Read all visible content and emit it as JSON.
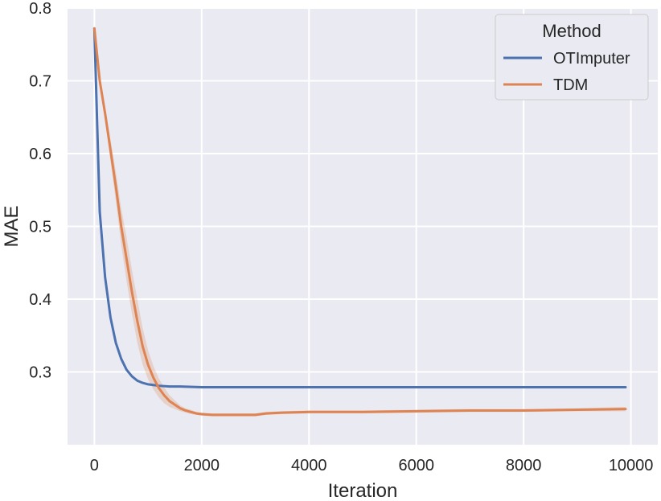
{
  "chart_data": {
    "type": "line",
    "title": "",
    "xlabel": "Iteration",
    "ylabel": "MAE",
    "xlim": [
      -500,
      10500
    ],
    "ylim": [
      0.2,
      0.8
    ],
    "x_ticks": [
      0,
      2000,
      4000,
      6000,
      8000,
      10000
    ],
    "x_tick_labels": [
      "0",
      "2000",
      "4000",
      "6000",
      "8000",
      "10000"
    ],
    "y_ticks": [
      0.3,
      0.4,
      0.5,
      0.6,
      0.7,
      0.8
    ],
    "y_tick_labels": [
      "0.3",
      "0.4",
      "0.5",
      "0.6",
      "0.7",
      "0.8"
    ],
    "grid": true,
    "background": "#eaeaf2",
    "legend": {
      "title": "Method",
      "position": "top-right"
    },
    "series": [
      {
        "name": "OTImputer",
        "color": "#4c72b0",
        "x": [
          0,
          100,
          200,
          300,
          400,
          500,
          600,
          700,
          800,
          900,
          1000,
          1200,
          1400,
          1600,
          2000,
          3000,
          4000,
          5000,
          6000,
          7000,
          8000,
          9000,
          9900
        ],
        "y": [
          0.772,
          0.52,
          0.43,
          0.375,
          0.34,
          0.318,
          0.303,
          0.294,
          0.288,
          0.285,
          0.283,
          0.281,
          0.28,
          0.28,
          0.279,
          0.279,
          0.279,
          0.279,
          0.279,
          0.279,
          0.279,
          0.279,
          0.279
        ]
      },
      {
        "name": "TDM",
        "color": "#dd8452",
        "x": [
          0,
          100,
          200,
          300,
          400,
          500,
          600,
          700,
          800,
          900,
          1000,
          1100,
          1200,
          1300,
          1400,
          1500,
          1600,
          1700,
          1800,
          1900,
          2000,
          2200,
          2500,
          3000,
          3200,
          3500,
          4000,
          5000,
          6000,
          7000,
          8000,
          9000,
          9900
        ],
        "y": [
          0.772,
          0.7,
          0.655,
          0.605,
          0.555,
          0.5,
          0.455,
          0.41,
          0.37,
          0.335,
          0.31,
          0.292,
          0.278,
          0.268,
          0.26,
          0.255,
          0.25,
          0.247,
          0.245,
          0.243,
          0.242,
          0.241,
          0.241,
          0.241,
          0.243,
          0.244,
          0.245,
          0.245,
          0.246,
          0.247,
          0.247,
          0.248,
          0.249
        ],
        "band_lower": [
          0.772,
          0.695,
          0.645,
          0.59,
          0.535,
          0.475,
          0.425,
          0.38,
          0.34,
          0.31,
          0.29,
          0.276,
          0.265,
          0.257,
          0.252,
          0.249,
          0.246,
          0.244,
          0.242,
          0.241,
          0.24,
          0.239,
          0.239,
          0.239,
          0.241,
          0.242,
          0.243,
          0.243,
          0.244,
          0.245,
          0.245,
          0.246,
          0.246
        ],
        "band_upper": [
          0.772,
          0.705,
          0.665,
          0.62,
          0.575,
          0.525,
          0.485,
          0.44,
          0.4,
          0.36,
          0.33,
          0.308,
          0.291,
          0.279,
          0.268,
          0.261,
          0.254,
          0.25,
          0.248,
          0.245,
          0.244,
          0.243,
          0.243,
          0.243,
          0.245,
          0.246,
          0.247,
          0.247,
          0.248,
          0.249,
          0.249,
          0.25,
          0.252
        ]
      }
    ]
  }
}
